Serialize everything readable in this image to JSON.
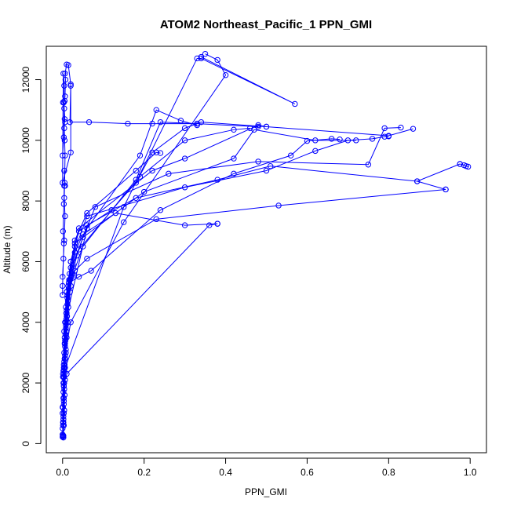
{
  "chart_data": {
    "type": "line",
    "title": "ATOM2 Northeast_Pacific_1 PPN_GMI",
    "xlabel": "PPN_GMI",
    "ylabel": "Altitude (m)",
    "xlim": [
      -0.04,
      1.04
    ],
    "ylim": [
      -300,
      13100
    ],
    "xticks": [
      0.0,
      0.2,
      0.4,
      0.6,
      0.8,
      1.0
    ],
    "xtick_labels": [
      "0.0",
      "0.2",
      "0.4",
      "0.6",
      "0.8",
      "1.0"
    ],
    "yticks": [
      0,
      2000,
      4000,
      6000,
      8000,
      10000,
      12000
    ],
    "ytick_labels": [
      "0",
      "2000",
      "4000",
      "6000",
      "8000",
      "10000",
      "12000"
    ],
    "grid": false,
    "legend": "none",
    "color": "#0000ff",
    "series": [
      {
        "points": [
          [
            0.002,
            200
          ],
          [
            0.003,
            600
          ],
          [
            0.004,
            1100
          ],
          [
            0.005,
            1600
          ],
          [
            0.006,
            2100
          ],
          [
            0.006,
            2500
          ],
          [
            0.008,
            3000
          ],
          [
            0.01,
            3500
          ],
          [
            0.012,
            4000
          ],
          [
            0.014,
            4500
          ],
          [
            0.018,
            5000
          ],
          [
            0.025,
            5600
          ],
          [
            0.03,
            6500
          ],
          [
            0.04,
            7000
          ],
          [
            0.12,
            7700
          ],
          [
            0.18,
            8600
          ],
          [
            0.22,
            9600
          ],
          [
            0.3,
            10400
          ],
          [
            0.34,
            10600
          ],
          [
            0.5,
            10450
          ],
          [
            0.8,
            10150
          ],
          [
            0.86,
            10380
          ]
        ]
      },
      {
        "points": [
          [
            0.0,
            220
          ],
          [
            0.002,
            700
          ],
          [
            0.003,
            1300
          ],
          [
            0.003,
            1900
          ],
          [
            0.004,
            2400
          ],
          [
            0.004,
            2700
          ],
          [
            0.006,
            3300
          ],
          [
            0.008,
            3800
          ],
          [
            0.01,
            4300
          ],
          [
            0.012,
            4800
          ],
          [
            0.016,
            5400
          ],
          [
            0.02,
            5800
          ],
          [
            0.03,
            6300
          ],
          [
            0.05,
            6900
          ],
          [
            0.13,
            7600
          ],
          [
            0.3,
            7200
          ],
          [
            0.38,
            7250
          ]
        ]
      },
      {
        "points": [
          [
            0.001,
            240
          ],
          [
            0.002,
            900
          ],
          [
            0.003,
            1500
          ],
          [
            0.004,
            2200
          ],
          [
            0.005,
            2800
          ],
          [
            0.006,
            3400
          ],
          [
            0.008,
            4000
          ],
          [
            0.012,
            4600
          ],
          [
            0.02,
            5200
          ],
          [
            0.03,
            5700
          ],
          [
            0.06,
            6100
          ],
          [
            0.23,
            7400
          ],
          [
            0.53,
            7850
          ],
          [
            0.94,
            8380
          ]
        ]
      },
      {
        "points": [
          [
            0.002,
            260
          ],
          [
            0.003,
            1000
          ],
          [
            0.004,
            1800
          ],
          [
            0.005,
            2600
          ],
          [
            0.007,
            3600
          ],
          [
            0.01,
            4400
          ],
          [
            0.015,
            5100
          ],
          [
            0.025,
            5900
          ],
          [
            0.05,
            6800
          ],
          [
            0.08,
            7800
          ],
          [
            0.26,
            8900
          ],
          [
            0.48,
            9300
          ],
          [
            0.75,
            9200
          ],
          [
            0.79,
            10400
          ],
          [
            0.83,
            10420
          ]
        ]
      },
      {
        "points": [
          [
            0.001,
            280
          ],
          [
            0.002,
            800
          ],
          [
            0.003,
            1400
          ],
          [
            0.004,
            2000
          ],
          [
            0.006,
            2900
          ],
          [
            0.009,
            3700
          ],
          [
            0.013,
            4700
          ],
          [
            0.022,
            5500
          ],
          [
            0.035,
            6200
          ],
          [
            0.06,
            7200
          ],
          [
            0.18,
            8100
          ],
          [
            0.38,
            8700
          ],
          [
            0.51,
            9150
          ],
          [
            0.87,
            8650
          ],
          [
            0.975,
            9220
          ]
        ]
      },
      {
        "points": [
          [
            0.0,
            300
          ],
          [
            0.001,
            1200
          ],
          [
            0.002,
            2000
          ],
          [
            0.004,
            3000
          ],
          [
            0.006,
            4000
          ],
          [
            0.01,
            5000
          ],
          [
            0.02,
            6000
          ],
          [
            0.06,
            7500
          ],
          [
            0.3,
            8450
          ],
          [
            0.5,
            9000
          ],
          [
            0.62,
            9650
          ],
          [
            0.7,
            10000
          ],
          [
            0.76,
            10050
          ],
          [
            0.79,
            10120
          ],
          [
            0.8,
            10130
          ]
        ]
      },
      {
        "points": [
          [
            0.0,
            500
          ],
          [
            0.002,
            1500
          ],
          [
            0.003,
            2600
          ],
          [
            0.005,
            3500
          ],
          [
            0.008,
            4500
          ],
          [
            0.015,
            5300
          ],
          [
            0.04,
            5500
          ],
          [
            0.07,
            5700
          ],
          [
            0.24,
            7700
          ],
          [
            0.42,
            8900
          ],
          [
            0.56,
            9500
          ],
          [
            0.6,
            9980
          ],
          [
            0.66,
            10050
          ],
          [
            0.68,
            10030
          ]
        ]
      },
      {
        "points": [
          [
            0.001,
            600
          ],
          [
            0.002,
            1700
          ],
          [
            0.004,
            2500
          ],
          [
            0.006,
            3200
          ],
          [
            0.009,
            4100
          ],
          [
            0.014,
            5200
          ],
          [
            0.03,
            6600
          ],
          [
            0.2,
            8300
          ],
          [
            0.42,
            9400
          ],
          [
            0.47,
            10350
          ],
          [
            0.62,
            10000
          ],
          [
            0.72,
            10000
          ]
        ]
      },
      {
        "points": [
          [
            0.001,
            700
          ],
          [
            0.003,
            1900
          ],
          [
            0.005,
            2800
          ],
          [
            0.008,
            3900
          ],
          [
            0.012,
            4900
          ],
          [
            0.02,
            6000
          ],
          [
            0.04,
            7100
          ],
          [
            0.22,
            9000
          ],
          [
            0.3,
            9400
          ],
          [
            0.48,
            10500
          ],
          [
            0.5,
            10450
          ]
        ]
      },
      {
        "points": [
          [
            0.002,
            800
          ],
          [
            0.004,
            2300
          ],
          [
            0.007,
            3400
          ],
          [
            0.011,
            4200
          ],
          [
            0.018,
            5400
          ],
          [
            0.03,
            6700
          ],
          [
            0.06,
            7600
          ],
          [
            0.18,
            9000
          ],
          [
            0.23,
            9600
          ],
          [
            0.24,
            9580
          ]
        ]
      },
      {
        "points": [
          [
            0.0,
            1000
          ],
          [
            0.002,
            2200
          ],
          [
            0.003,
            2500
          ],
          [
            0.005,
            3300
          ],
          [
            0.009,
            4300
          ],
          [
            0.017,
            5600
          ],
          [
            0.04,
            6400
          ],
          [
            0.19,
            8800
          ],
          [
            0.3,
            10000
          ],
          [
            0.42,
            10350
          ],
          [
            0.46,
            10400
          ]
        ]
      },
      {
        "points": [
          [
            0.0,
            1200
          ],
          [
            0.004,
            3700
          ],
          [
            0.01,
            5000
          ],
          [
            0.05,
            6500
          ],
          [
            0.18,
            8700
          ],
          [
            0.24,
            10600
          ],
          [
            0.33,
            10550
          ],
          [
            0.48,
            10450
          ]
        ]
      },
      {
        "points": [
          [
            0.001,
            2200
          ],
          [
            0.01,
            4200
          ],
          [
            0.06,
            7100
          ],
          [
            0.19,
            9500
          ],
          [
            0.23,
            11000
          ],
          [
            0.29,
            10650
          ],
          [
            0.33,
            10500
          ]
        ]
      },
      {
        "points": [
          [
            0.002,
            2400
          ],
          [
            0.006,
            2800
          ],
          [
            0.008,
            3100
          ],
          [
            0.02,
            4000
          ],
          [
            0.15,
            7300
          ],
          [
            0.4,
            12150
          ],
          [
            0.38,
            12650
          ],
          [
            0.35,
            12850
          ]
        ]
      },
      {
        "points": [
          [
            0.001,
            2300
          ],
          [
            0.15,
            7800
          ],
          [
            0.33,
            12700
          ],
          [
            0.34,
            12700
          ],
          [
            0.57,
            11200
          ],
          [
            0.34,
            12750
          ]
        ]
      },
      {
        "points": [
          [
            0.01,
            2300
          ],
          [
            0.36,
            7200
          ],
          [
            0.38,
            7250
          ]
        ]
      },
      {
        "points": [
          [
            0.0,
            5500
          ],
          [
            0.004,
            6700
          ],
          [
            0.006,
            7500
          ],
          [
            0.004,
            8100
          ],
          [
            0.005,
            8600
          ],
          [
            0.006,
            9500
          ],
          [
            0.005,
            10000
          ],
          [
            0.004,
            10400
          ],
          [
            0.005,
            10700
          ],
          [
            0.006,
            10600
          ],
          [
            0.004,
            11050
          ],
          [
            0.003,
            11250
          ],
          [
            0.005,
            11300
          ],
          [
            0.006,
            11450
          ],
          [
            0.007,
            12000
          ],
          [
            0.006,
            12200
          ],
          [
            0.01,
            12500
          ],
          [
            0.014,
            12480
          ],
          [
            0.02,
            11850
          ],
          [
            0.018,
            10600
          ],
          [
            0.065,
            10600
          ],
          [
            0.16,
            10550
          ],
          [
            0.22,
            10550
          ],
          [
            0.33,
            10550
          ]
        ]
      },
      {
        "points": [
          [
            0.0,
            9500
          ],
          [
            0.003,
            10100
          ],
          [
            0.004,
            11800
          ],
          [
            0.002,
            12200
          ],
          [
            0.001,
            11250
          ],
          [
            0.0,
            8600
          ],
          [
            0.02,
            9600
          ],
          [
            0.02,
            11800
          ]
        ]
      },
      {
        "points": [
          [
            0.0,
            4900
          ],
          [
            0.0,
            5200
          ],
          [
            0.002,
            6100
          ],
          [
            0.003,
            6600
          ],
          [
            0.001,
            7000
          ],
          [
            0.003,
            7900
          ],
          [
            0.004,
            8500
          ],
          [
            0.006,
            8500
          ],
          [
            0.004,
            9000
          ]
        ]
      },
      {
        "points": [
          [
            0.94,
            8380
          ],
          [
            0.87,
            8650
          ]
        ]
      },
      {
        "points": [
          [
            0.975,
            9220
          ],
          [
            0.985,
            9180
          ],
          [
            0.995,
            9130
          ],
          [
            0.99,
            9150
          ]
        ]
      }
    ]
  }
}
